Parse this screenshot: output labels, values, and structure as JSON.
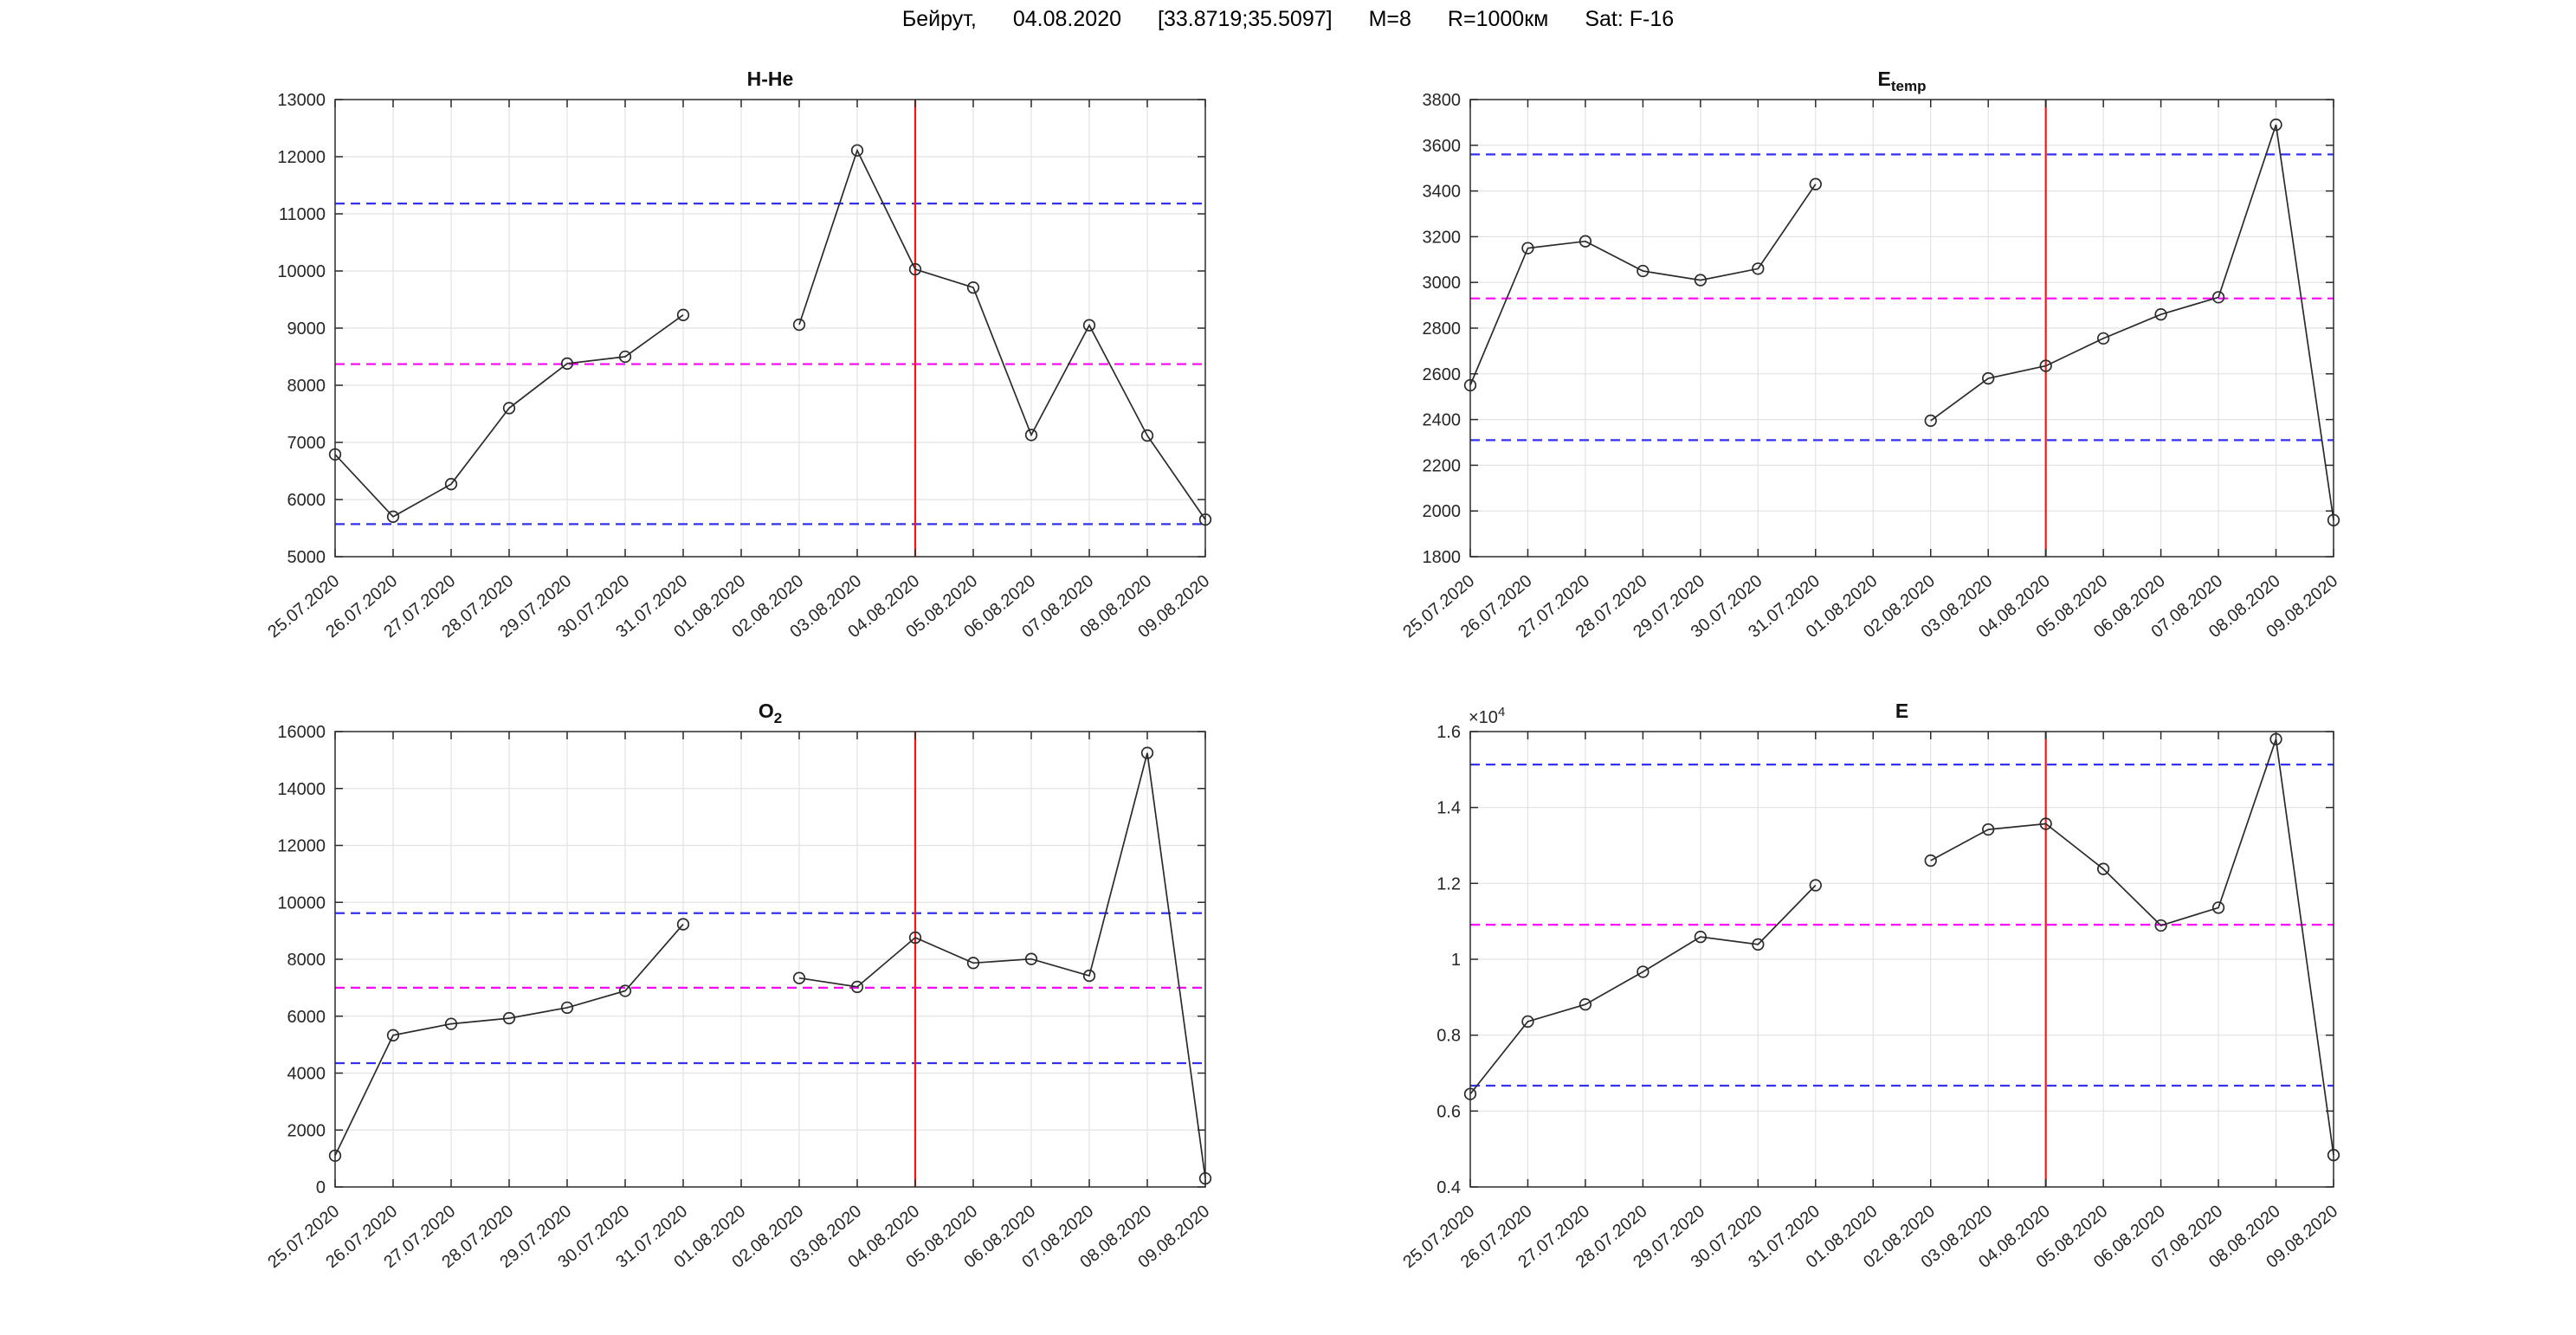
{
  "header": {
    "parts": [
      "Бейрут,",
      "04.08.2020",
      "[33.8719;35.5097]",
      "M=8",
      "R=1000км",
      "Sat: F-16"
    ]
  },
  "palette": {
    "series": "#2b2b2b",
    "bound": "#3232f0",
    "mean": "#ff00ff",
    "event": "#ff1212",
    "text": "#262626"
  },
  "event_date": "04.08.2020",
  "event_index": 10,
  "chart_data": [
    {
      "type": "line",
      "id": "h-he",
      "title": "H-He",
      "title_sub": "",
      "y_min": 5000,
      "y_max": 13000,
      "y_tick_values": [
        5000,
        6000,
        7000,
        8000,
        9000,
        10000,
        11000,
        12000,
        13000
      ],
      "y_tick_labels": [
        "5000",
        "6000",
        "7000",
        "8000",
        "9000",
        "10000",
        "11000",
        "12000",
        "13000"
      ],
      "y_exponent_base": "",
      "y_exponent_power": "",
      "categories": [
        "25.07.2020",
        "26.07.2020",
        "27.07.2020",
        "28.07.2020",
        "29.07.2020",
        "30.07.2020",
        "31.07.2020",
        "01.08.2020",
        "02.08.2020",
        "03.08.2020",
        "04.08.2020",
        "05.08.2020",
        "06.08.2020",
        "07.08.2020",
        "08.08.2020",
        "09.08.2020"
      ],
      "values": [
        6790,
        5700,
        6270,
        7600,
        8380,
        8500,
        9230,
        null,
        9060,
        12110,
        10030,
        9710,
        7130,
        9050,
        7120,
        5650
      ],
      "thresholds": {
        "upper": 11180,
        "mean": 8370,
        "lower": 5570
      },
      "legend_position": "none",
      "grid": true
    },
    {
      "type": "line",
      "id": "e-temp",
      "title": "E",
      "title_sub": "temp",
      "y_min": 1800,
      "y_max": 3800,
      "y_tick_values": [
        1800,
        2000,
        2200,
        2400,
        2600,
        2800,
        3000,
        3200,
        3400,
        3600,
        3800
      ],
      "y_tick_labels": [
        "1800",
        "2000",
        "2200",
        "2400",
        "2600",
        "2800",
        "3000",
        "3200",
        "3400",
        "3600",
        "3800"
      ],
      "y_exponent_base": "",
      "y_exponent_power": "",
      "categories": [
        "25.07.2020",
        "26.07.2020",
        "27.07.2020",
        "28.07.2020",
        "29.07.2020",
        "30.07.2020",
        "31.07.2020",
        "01.08.2020",
        "02.08.2020",
        "03.08.2020",
        "04.08.2020",
        "05.08.2020",
        "06.08.2020",
        "07.08.2020",
        "08.08.2020",
        "09.08.2020"
      ],
      "values": [
        2550,
        3150,
        3180,
        3050,
        3010,
        3060,
        3430,
        null,
        2395,
        2580,
        2635,
        2755,
        2860,
        2935,
        3690,
        1960
      ],
      "thresholds": {
        "upper": 3560,
        "mean": 2930,
        "lower": 2310
      },
      "legend_position": "none",
      "grid": true
    },
    {
      "type": "line",
      "id": "o2",
      "title": "O",
      "title_sub": "2",
      "y_min": 0,
      "y_max": 16000,
      "y_tick_values": [
        0,
        2000,
        4000,
        6000,
        8000,
        10000,
        12000,
        14000,
        16000
      ],
      "y_tick_labels": [
        "0",
        "2000",
        "4000",
        "6000",
        "8000",
        "10000",
        "12000",
        "14000",
        "16000"
      ],
      "y_exponent_base": "",
      "y_exponent_power": "",
      "categories": [
        "25.07.2020",
        "26.07.2020",
        "27.07.2020",
        "28.07.2020",
        "29.07.2020",
        "30.07.2020",
        "31.07.2020",
        "01.08.2020",
        "02.08.2020",
        "03.08.2020",
        "04.08.2020",
        "05.08.2020",
        "06.08.2020",
        "07.08.2020",
        "08.08.2020",
        "09.08.2020"
      ],
      "values": [
        1100,
        5330,
        5730,
        5930,
        6300,
        6890,
        9230,
        null,
        7340,
        7030,
        8760,
        7870,
        8010,
        7420,
        15250,
        300
      ],
      "thresholds": {
        "upper": 9620,
        "mean": 7000,
        "lower": 4350
      },
      "legend_position": "none",
      "grid": true
    },
    {
      "type": "line",
      "id": "e",
      "title": "E",
      "title_sub": "",
      "y_min": 4000,
      "y_max": 16000,
      "y_tick_values": [
        4000,
        6000,
        8000,
        10000,
        12000,
        14000,
        16000
      ],
      "y_tick_labels": [
        "0.4",
        "0.6",
        "0.8",
        "1",
        "1.2",
        "1.4",
        "1.6"
      ],
      "y_exponent_base": "×10",
      "y_exponent_power": "4",
      "categories": [
        "25.07.2020",
        "26.07.2020",
        "27.07.2020",
        "28.07.2020",
        "29.07.2020",
        "30.07.2020",
        "31.07.2020",
        "01.08.2020",
        "02.08.2020",
        "03.08.2020",
        "04.08.2020",
        "05.08.2020",
        "06.08.2020",
        "07.08.2020",
        "08.08.2020",
        "09.08.2020"
      ],
      "values": [
        6450,
        8360,
        8810,
        9670,
        10590,
        10390,
        11950,
        null,
        12600,
        13420,
        13570,
        12380,
        10890,
        11360,
        15800,
        4840
      ],
      "thresholds": {
        "upper": 15130,
        "mean": 10910,
        "lower": 6670
      },
      "legend_position": "none",
      "grid": true
    }
  ]
}
